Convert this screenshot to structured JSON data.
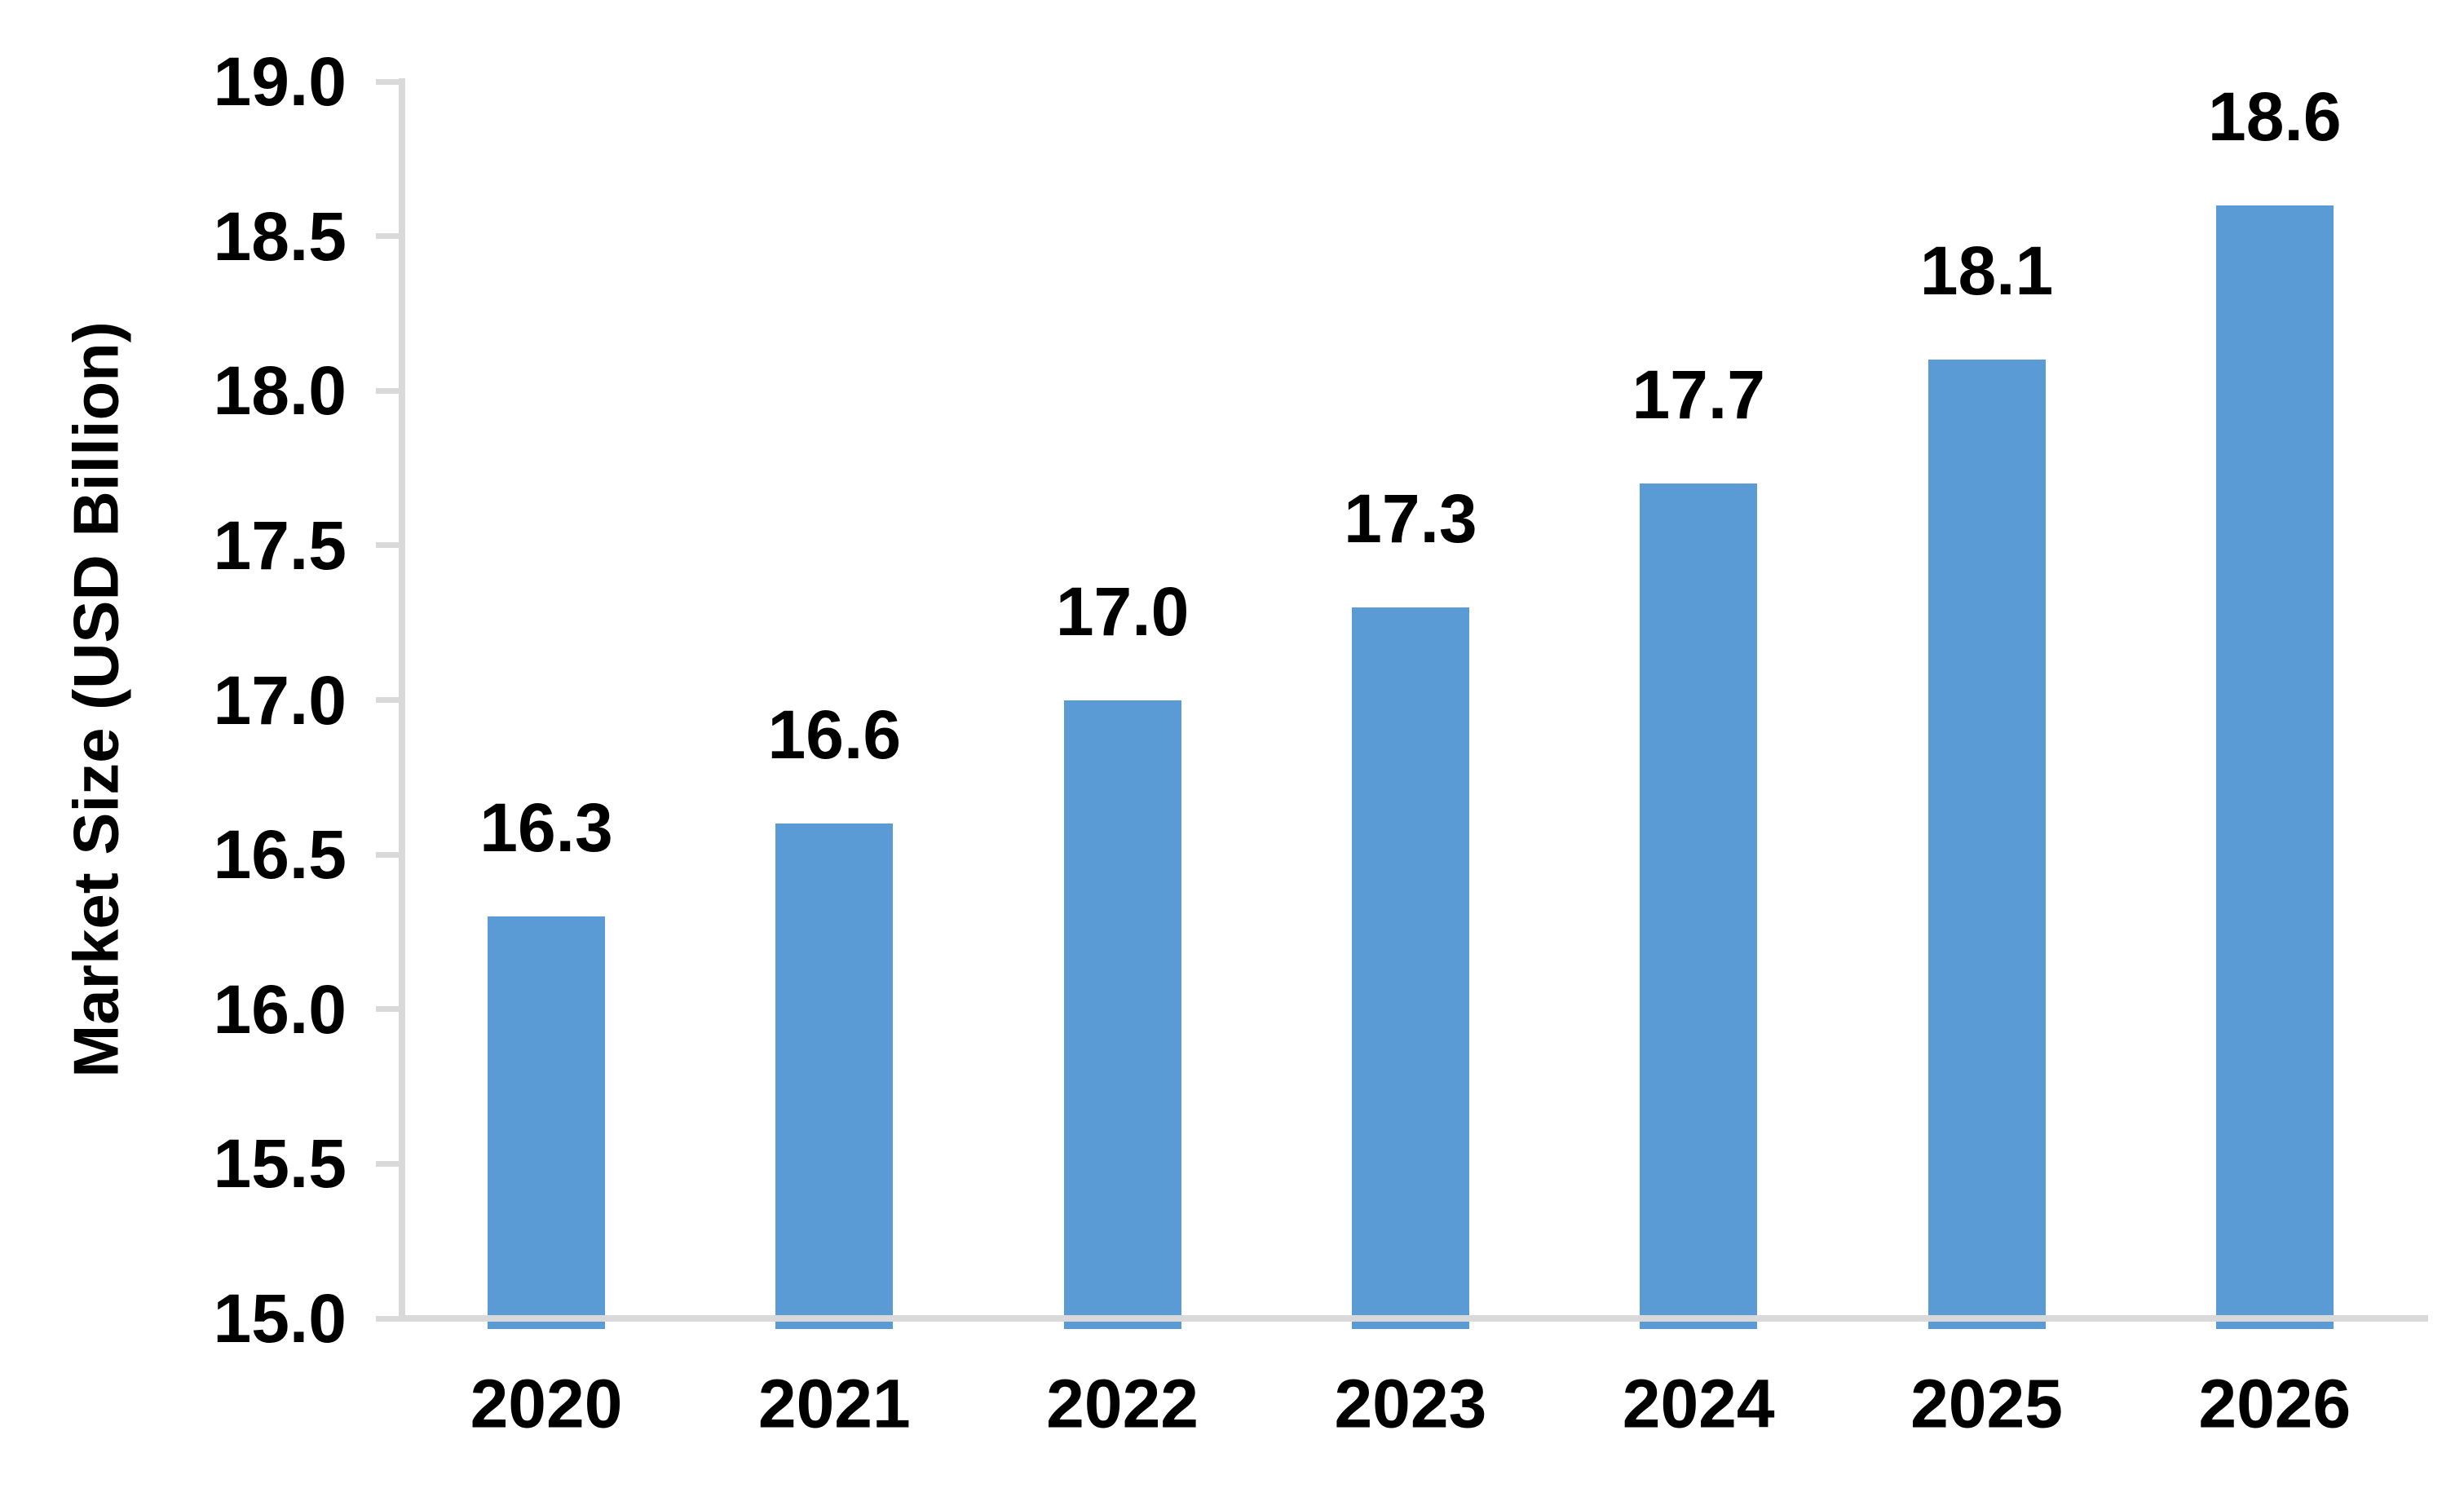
{
  "chart_data": {
    "type": "bar",
    "title": "",
    "categories": [
      "2020",
      "2021",
      "2022",
      "2023",
      "2024",
      "2025",
      "2026"
    ],
    "values": [
      16.3,
      16.6,
      17.0,
      17.3,
      17.7,
      18.1,
      18.6
    ],
    "data_labels": [
      "16.3",
      "16.6",
      "17.0",
      "17.3",
      "17.7",
      "18.1",
      "18.6"
    ],
    "xlabel": "",
    "ylabel": "Market Size (USD Billion)",
    "ylim": [
      15.0,
      19.0
    ],
    "ytick_step": 0.5,
    "ytick_labels": [
      "15.0",
      "15.5",
      "16.0",
      "16.5",
      "17.0",
      "17.5",
      "18.0",
      "18.5",
      "19.0"
    ],
    "grid": "off",
    "legend": "none",
    "bar_color": "#5B9BD5",
    "axis_color": "#D9D9D9",
    "text_color": "#000000"
  }
}
